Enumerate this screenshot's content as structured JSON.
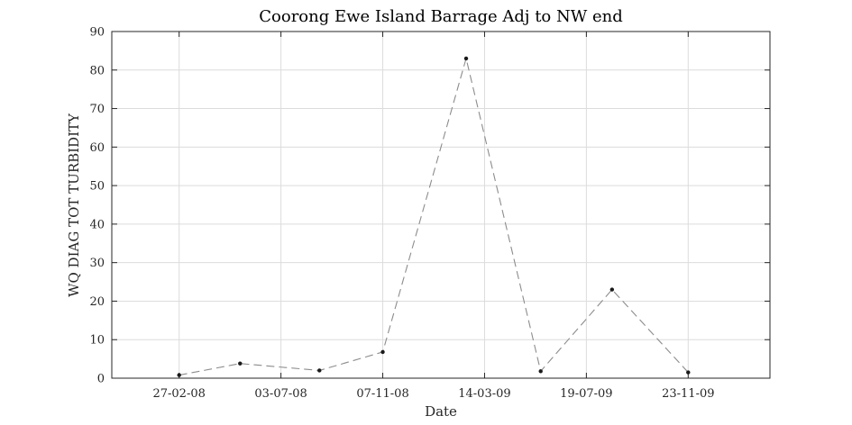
{
  "chart_data": {
    "type": "line",
    "title": "Coorong Ewe Island Barrage Adj to NW end",
    "xlabel": "Date",
    "ylabel": "WQ DIAG TOT TURBIDITY",
    "x_tick_labels": [
      "27-02-08",
      "03-07-08",
      "07-11-08",
      "14-03-09",
      "19-07-09",
      "23-11-09"
    ],
    "x_tick_dates": [
      "2008-02-27",
      "2008-07-03",
      "2008-11-07",
      "2009-03-14",
      "2009-07-19",
      "2009-11-23"
    ],
    "xlim": [
      "2007-12-05",
      "2010-03-05"
    ],
    "y_ticks": [
      0,
      10,
      20,
      30,
      40,
      50,
      60,
      70,
      80,
      90
    ],
    "ylim": [
      0,
      90
    ],
    "grid": true,
    "series": [
      {
        "x": [
          "2008-02-27",
          "2008-05-13",
          "2008-08-20",
          "2008-11-07",
          "2009-02-19",
          "2009-05-23",
          "2009-08-20",
          "2009-11-23"
        ],
        "values": [
          0.8,
          3.8,
          2.0,
          6.8,
          83.0,
          1.8,
          23.0,
          1.5
        ],
        "color": "#8c8c8c",
        "line_style": "dashed",
        "marker_color": "#1a1a1a"
      }
    ]
  }
}
